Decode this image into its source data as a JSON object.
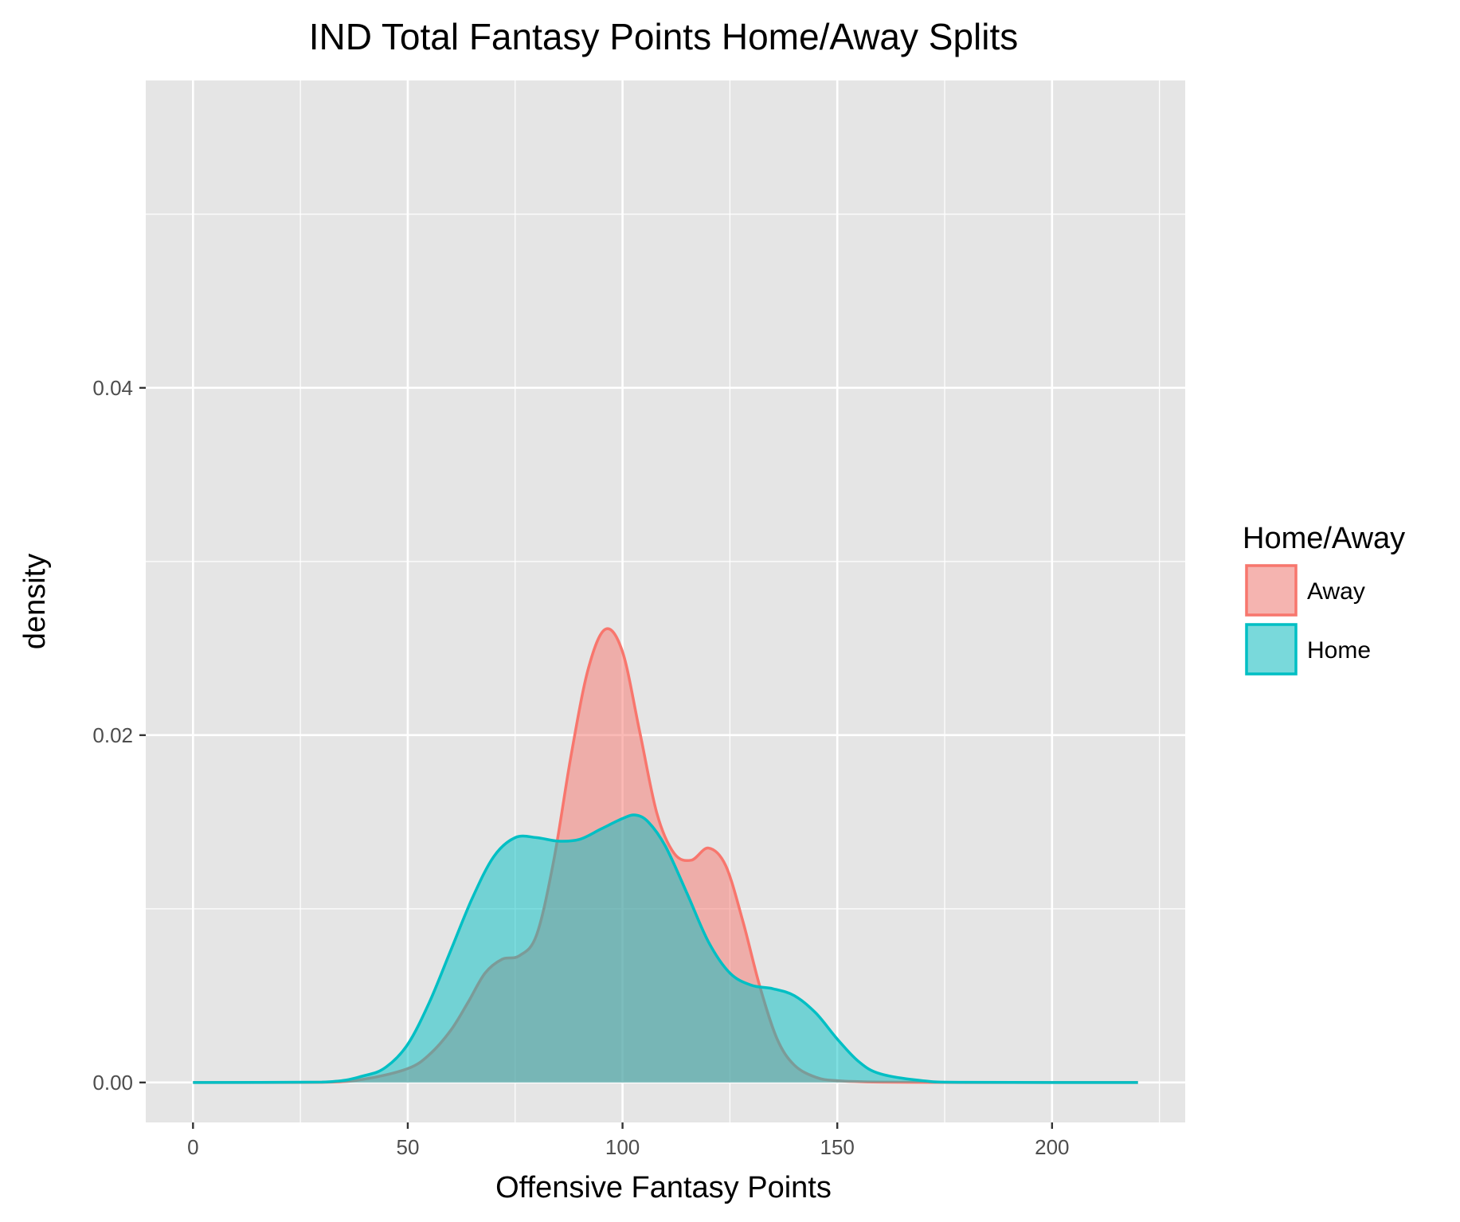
{
  "chart_data": {
    "type": "area",
    "title": "IND Total Fantasy Points Home/Away Splits",
    "xlabel": "Offensive Fantasy Points",
    "ylabel": "density",
    "xlim": [
      -11,
      231
    ],
    "ylim": [
      -0.0023,
      0.0577
    ],
    "x_ticks": [
      {
        "value": 0,
        "label": "0"
      },
      {
        "value": 50,
        "label": "50"
      },
      {
        "value": 100,
        "label": "100"
      },
      {
        "value": 150,
        "label": "150"
      },
      {
        "value": 200,
        "label": "200"
      }
    ],
    "y_ticks": [
      {
        "value": 0.0,
        "label": "0.00"
      },
      {
        "value": 0.02,
        "label": "0.02"
      },
      {
        "value": 0.04,
        "label": "0.04"
      }
    ],
    "grid": true,
    "legend_position": "right",
    "legend_title": "Home/Away",
    "series": [
      {
        "name": "Away",
        "color": "#F8766D",
        "fill": "#F8766D",
        "fill_opacity": 0.5,
        "x": [
          0,
          30,
          40,
          50,
          55,
          60,
          64,
          68,
          72,
          76,
          80,
          84,
          88,
          92,
          96,
          100,
          104,
          108,
          112,
          116,
          120,
          124,
          128,
          132,
          136,
          140,
          145,
          150,
          160,
          180,
          220
        ],
        "y": [
          0,
          1e-05,
          0.0002,
          0.0008,
          0.0016,
          0.003,
          0.0046,
          0.0063,
          0.0071,
          0.0073,
          0.0085,
          0.0128,
          0.0188,
          0.0238,
          0.0261,
          0.0248,
          0.0202,
          0.0155,
          0.0132,
          0.0128,
          0.0135,
          0.0125,
          0.0093,
          0.0055,
          0.0025,
          0.001,
          0.0003,
          0.0001,
          2e-05,
          0,
          0
        ]
      },
      {
        "name": "Home",
        "color": "#00BFC4",
        "fill": "#00BFC4",
        "fill_opacity": 0.5,
        "x": [
          0,
          30,
          40,
          45,
          50,
          55,
          60,
          65,
          70,
          75,
          80,
          85,
          90,
          95,
          100,
          103,
          106,
          110,
          115,
          120,
          125,
          130,
          135,
          140,
          145,
          150,
          155,
          160,
          170,
          180,
          220
        ],
        "y": [
          0,
          2e-05,
          0.0004,
          0.0009,
          0.0022,
          0.0046,
          0.0076,
          0.0106,
          0.013,
          0.0141,
          0.0141,
          0.0139,
          0.014,
          0.0146,
          0.0152,
          0.0154,
          0.015,
          0.0136,
          0.0109,
          0.0081,
          0.0063,
          0.0056,
          0.0054,
          0.005,
          0.004,
          0.0025,
          0.0012,
          0.0005,
          0.0001,
          1e-05,
          0
        ]
      }
    ]
  }
}
